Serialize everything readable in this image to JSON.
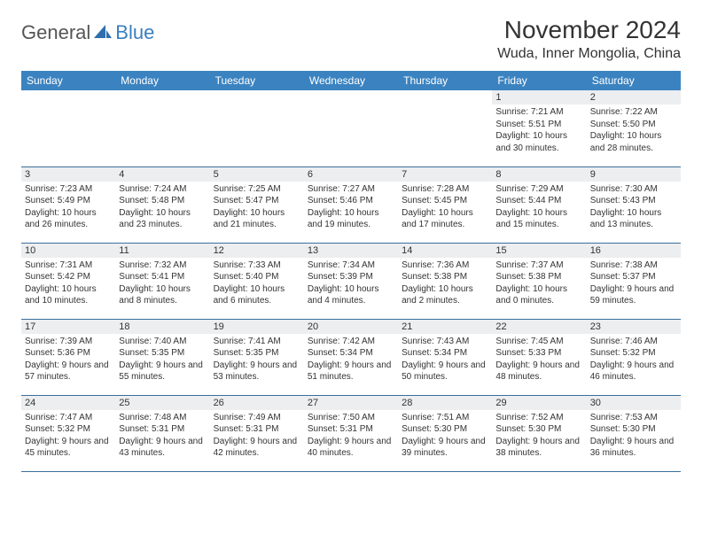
{
  "logo": {
    "part1": "General",
    "part2": "Blue"
  },
  "title": "November 2024",
  "location": "Wuda, Inner Mongolia, China",
  "colors": {
    "header_bg": "#3b83c0",
    "header_text": "#ffffff",
    "daynum_bg": "#eceef0",
    "border": "#3b6f9e",
    "logo_gray": "#555555",
    "logo_blue": "#3a7fbf"
  },
  "dow": [
    "Sunday",
    "Monday",
    "Tuesday",
    "Wednesday",
    "Thursday",
    "Friday",
    "Saturday"
  ],
  "weeks": [
    [
      null,
      null,
      null,
      null,
      null,
      {
        "n": "1",
        "sr": "7:21 AM",
        "ss": "5:51 PM",
        "dl": "10 hours and 30 minutes."
      },
      {
        "n": "2",
        "sr": "7:22 AM",
        "ss": "5:50 PM",
        "dl": "10 hours and 28 minutes."
      }
    ],
    [
      {
        "n": "3",
        "sr": "7:23 AM",
        "ss": "5:49 PM",
        "dl": "10 hours and 26 minutes."
      },
      {
        "n": "4",
        "sr": "7:24 AM",
        "ss": "5:48 PM",
        "dl": "10 hours and 23 minutes."
      },
      {
        "n": "5",
        "sr": "7:25 AM",
        "ss": "5:47 PM",
        "dl": "10 hours and 21 minutes."
      },
      {
        "n": "6",
        "sr": "7:27 AM",
        "ss": "5:46 PM",
        "dl": "10 hours and 19 minutes."
      },
      {
        "n": "7",
        "sr": "7:28 AM",
        "ss": "5:45 PM",
        "dl": "10 hours and 17 minutes."
      },
      {
        "n": "8",
        "sr": "7:29 AM",
        "ss": "5:44 PM",
        "dl": "10 hours and 15 minutes."
      },
      {
        "n": "9",
        "sr": "7:30 AM",
        "ss": "5:43 PM",
        "dl": "10 hours and 13 minutes."
      }
    ],
    [
      {
        "n": "10",
        "sr": "7:31 AM",
        "ss": "5:42 PM",
        "dl": "10 hours and 10 minutes."
      },
      {
        "n": "11",
        "sr": "7:32 AM",
        "ss": "5:41 PM",
        "dl": "10 hours and 8 minutes."
      },
      {
        "n": "12",
        "sr": "7:33 AM",
        "ss": "5:40 PM",
        "dl": "10 hours and 6 minutes."
      },
      {
        "n": "13",
        "sr": "7:34 AM",
        "ss": "5:39 PM",
        "dl": "10 hours and 4 minutes."
      },
      {
        "n": "14",
        "sr": "7:36 AM",
        "ss": "5:38 PM",
        "dl": "10 hours and 2 minutes."
      },
      {
        "n": "15",
        "sr": "7:37 AM",
        "ss": "5:38 PM",
        "dl": "10 hours and 0 minutes."
      },
      {
        "n": "16",
        "sr": "7:38 AM",
        "ss": "5:37 PM",
        "dl": "9 hours and 59 minutes."
      }
    ],
    [
      {
        "n": "17",
        "sr": "7:39 AM",
        "ss": "5:36 PM",
        "dl": "9 hours and 57 minutes."
      },
      {
        "n": "18",
        "sr": "7:40 AM",
        "ss": "5:35 PM",
        "dl": "9 hours and 55 minutes."
      },
      {
        "n": "19",
        "sr": "7:41 AM",
        "ss": "5:35 PM",
        "dl": "9 hours and 53 minutes."
      },
      {
        "n": "20",
        "sr": "7:42 AM",
        "ss": "5:34 PM",
        "dl": "9 hours and 51 minutes."
      },
      {
        "n": "21",
        "sr": "7:43 AM",
        "ss": "5:34 PM",
        "dl": "9 hours and 50 minutes."
      },
      {
        "n": "22",
        "sr": "7:45 AM",
        "ss": "5:33 PM",
        "dl": "9 hours and 48 minutes."
      },
      {
        "n": "23",
        "sr": "7:46 AM",
        "ss": "5:32 PM",
        "dl": "9 hours and 46 minutes."
      }
    ],
    [
      {
        "n": "24",
        "sr": "7:47 AM",
        "ss": "5:32 PM",
        "dl": "9 hours and 45 minutes."
      },
      {
        "n": "25",
        "sr": "7:48 AM",
        "ss": "5:31 PM",
        "dl": "9 hours and 43 minutes."
      },
      {
        "n": "26",
        "sr": "7:49 AM",
        "ss": "5:31 PM",
        "dl": "9 hours and 42 minutes."
      },
      {
        "n": "27",
        "sr": "7:50 AM",
        "ss": "5:31 PM",
        "dl": "9 hours and 40 minutes."
      },
      {
        "n": "28",
        "sr": "7:51 AM",
        "ss": "5:30 PM",
        "dl": "9 hours and 39 minutes."
      },
      {
        "n": "29",
        "sr": "7:52 AM",
        "ss": "5:30 PM",
        "dl": "9 hours and 38 minutes."
      },
      {
        "n": "30",
        "sr": "7:53 AM",
        "ss": "5:30 PM",
        "dl": "9 hours and 36 minutes."
      }
    ]
  ],
  "labels": {
    "sunrise": "Sunrise:",
    "sunset": "Sunset:",
    "daylight": "Daylight:"
  }
}
